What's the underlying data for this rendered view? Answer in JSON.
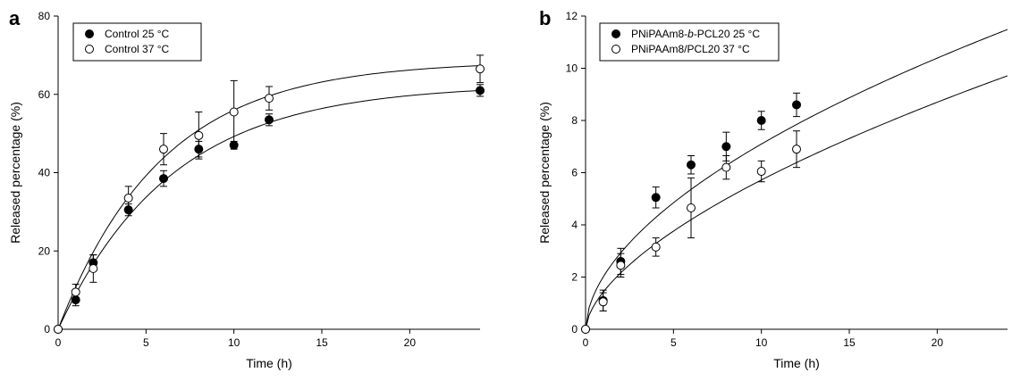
{
  "chart_data": [
    {
      "panel": "a",
      "type": "scatter",
      "xlabel": "Time (h)",
      "ylabel": "Released percentage (%)",
      "xlim": [
        0,
        24
      ],
      "ylim": [
        0,
        80
      ],
      "xticks": [
        0,
        5,
        10,
        15,
        20
      ],
      "yticks": [
        0,
        20,
        40,
        60,
        80
      ],
      "legend_position": "top-left",
      "series": [
        {
          "name": "Control 25 °C",
          "marker": "filled",
          "x": [
            0,
            1,
            2,
            4,
            6,
            8,
            10,
            12,
            24
          ],
          "y": [
            0,
            7.5,
            17,
            30.5,
            38.5,
            46,
            47,
            53.5,
            61
          ],
          "err": [
            0,
            1.5,
            2,
            1.5,
            2,
            2,
            1,
            1.5,
            1.5
          ],
          "fit": {
            "max": 62.5,
            "k": 0.155
          }
        },
        {
          "name": "Control 37 °C",
          "marker": "open",
          "x": [
            0,
            1,
            2,
            4,
            6,
            8,
            10,
            12,
            24
          ],
          "y": [
            0,
            9.5,
            15.5,
            33.5,
            46,
            49.5,
            55.5,
            59,
            66.5
          ],
          "err": [
            0,
            2,
            3.5,
            3,
            4,
            6,
            8,
            3,
            3.5
          ],
          "fit": {
            "max": 68.5,
            "k": 0.17
          }
        }
      ]
    },
    {
      "panel": "b",
      "type": "scatter",
      "xlabel": "Time (h)",
      "ylabel": "Released percentage (%)",
      "xlim": [
        0,
        24
      ],
      "ylim": [
        0,
        12
      ],
      "xticks": [
        0,
        5,
        10,
        15,
        20
      ],
      "yticks": [
        0,
        2,
        4,
        6,
        8,
        10,
        12
      ],
      "legend_position": "top-left",
      "series": [
        {
          "name_parts": [
            "PNiPAAm8-",
            "b",
            "-PCL20 25 °C"
          ],
          "marker": "filled",
          "x": [
            0,
            1,
            2,
            4,
            6,
            8,
            10,
            12
          ],
          "y": [
            0,
            1.1,
            2.6,
            5.05,
            6.3,
            7.0,
            8.0,
            8.6
          ],
          "err": [
            0,
            0.4,
            0.5,
            0.4,
            0.35,
            0.55,
            0.35,
            0.45
          ],
          "fit": {
            "a": 2.0,
            "n": 0.55
          }
        },
        {
          "name_parts": [
            "PNiPAAm8/PCL20 37 °C"
          ],
          "marker": "open",
          "x": [
            0,
            1,
            2,
            4,
            6,
            8,
            10,
            12
          ],
          "y": [
            0,
            1.05,
            2.45,
            3.15,
            4.65,
            6.2,
            6.05,
            6.9
          ],
          "err": [
            0,
            0.35,
            0.45,
            0.35,
            1.15,
            0.45,
            0.4,
            0.7
          ],
          "fit": {
            "a": 1.42,
            "n": 0.605
          }
        }
      ]
    }
  ]
}
